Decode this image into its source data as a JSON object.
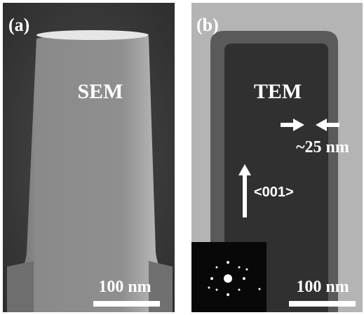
{
  "panels": [
    {
      "label": "(a)",
      "caption": "SEM",
      "scale_bar": "100 nm"
    },
    {
      "label": "(b)",
      "caption": "TEM",
      "thickness": "~25 nm",
      "direction": "<001>",
      "scale_bar": "100 nm"
    }
  ]
}
